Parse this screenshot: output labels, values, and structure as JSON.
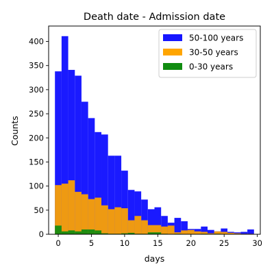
{
  "chart_data": {
    "type": "bar",
    "title": "Death date - Admission date",
    "xlabel": "days",
    "ylabel": "Counts",
    "xlim": [
      -1.45,
      30.45
    ],
    "ylim": [
      0,
      432
    ],
    "xticks": [
      0,
      5,
      10,
      15,
      20,
      25,
      30
    ],
    "yticks": [
      0,
      50,
      100,
      150,
      200,
      250,
      300,
      350,
      400
    ],
    "grid": false,
    "legend_position": "top-right",
    "x": [
      0,
      1,
      2,
      3,
      4,
      5,
      6,
      7,
      8,
      9,
      10,
      11,
      12,
      13,
      14,
      15,
      16,
      17,
      18,
      19,
      20,
      21,
      22,
      23,
      24,
      25,
      26,
      27,
      28,
      29
    ],
    "series": [
      {
        "name": "50-100 years",
        "color": "#1515ff",
        "values": [
          338,
          411,
          341,
          329,
          275,
          241,
          212,
          207,
          163,
          163,
          132,
          92,
          89,
          72,
          52,
          56,
          38,
          24,
          34,
          27,
          11,
          11,
          16,
          9,
          6,
          12,
          5,
          4,
          5,
          10
        ]
      },
      {
        "name": "30-50 years",
        "color": "#ffa500",
        "values": [
          102,
          105,
          112,
          88,
          83,
          73,
          76,
          60,
          52,
          56,
          54,
          29,
          38,
          29,
          19,
          19,
          16,
          18,
          4,
          8,
          9,
          6,
          5,
          2,
          6,
          5,
          3,
          2,
          1,
          1
        ]
      },
      {
        "name": "0-30 years",
        "color": "#108c10",
        "values": [
          18,
          6,
          8,
          6,
          10,
          10,
          8,
          2,
          1,
          1,
          2,
          3,
          1,
          1,
          4,
          4,
          1,
          0,
          1,
          0,
          0,
          0,
          1,
          0,
          1,
          0,
          0,
          0,
          0,
          0
        ]
      }
    ]
  }
}
